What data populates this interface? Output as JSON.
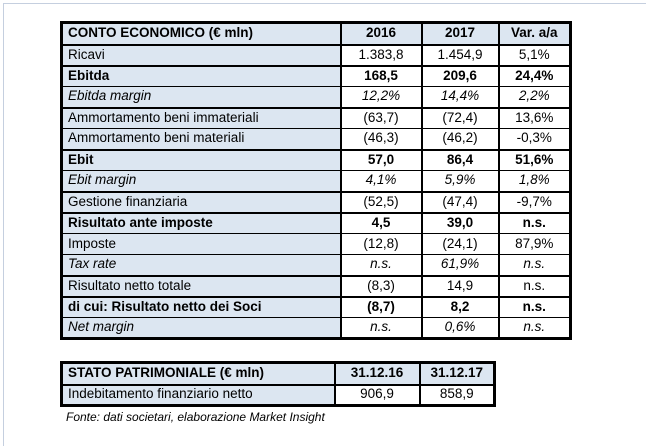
{
  "colors": {
    "header_fill": "#dce6f1",
    "label_fill": "#dce6f1",
    "table_border": "#000000",
    "frame_border": "#c5cfdf"
  },
  "income_statement": {
    "title": "CONTO ECONOMICO (€ mln)",
    "columns": [
      "2016",
      "2017",
      "Var. a/a"
    ],
    "rows": [
      {
        "label": "Ricavi",
        "values": [
          "1.383,8",
          "1.454,9",
          "5,1%"
        ],
        "style": "normal"
      },
      {
        "label": "Ebitda",
        "values": [
          "168,5",
          "209,6",
          "24,4%"
        ],
        "style": "bold"
      },
      {
        "label": "Ebitda margin",
        "values": [
          "12,2%",
          "14,4%",
          "2,2%"
        ],
        "style": "italic"
      },
      {
        "label": "Ammortamento beni immateriali",
        "values": [
          "(63,7)",
          "(72,4)",
          "13,6%"
        ],
        "style": "normal"
      },
      {
        "label": "Ammortamento beni materiali",
        "values": [
          "(46,3)",
          "(46,2)",
          "-0,3%"
        ],
        "style": "normal"
      },
      {
        "label": "Ebit",
        "values": [
          "57,0",
          "86,4",
          "51,6%"
        ],
        "style": "bold"
      },
      {
        "label": "Ebit margin",
        "values": [
          "4,1%",
          "5,9%",
          "1,8%"
        ],
        "style": "italic"
      },
      {
        "label": "Gestione finanziaria",
        "values": [
          "(52,5)",
          "(47,4)",
          "-9,7%"
        ],
        "style": "normal"
      },
      {
        "label": "Risultato ante imposte",
        "values": [
          "4,5",
          "39,0",
          "n.s."
        ],
        "style": "bold"
      },
      {
        "label": "Imposte",
        "values": [
          "(12,8)",
          "(24,1)",
          "87,9%"
        ],
        "style": "normal"
      },
      {
        "label": "Tax rate",
        "values": [
          "n.s.",
          "61,9%",
          "n.s."
        ],
        "style": "italic"
      },
      {
        "label": "Risultato netto totale",
        "values": [
          "(8,3)",
          "14,9",
          "n.s."
        ],
        "style": "normal"
      },
      {
        "label": "di cui: Risultato netto dei Soci",
        "values": [
          "(8,7)",
          "8,2",
          "n.s."
        ],
        "style": "bold"
      },
      {
        "label": "Net margin",
        "values": [
          "n.s.",
          "0,6%",
          "n.s."
        ],
        "style": "italic"
      }
    ]
  },
  "balance_sheet": {
    "title": "STATO PATRIMONIALE (€ mln)",
    "columns": [
      "31.12.16",
      "31.12.17"
    ],
    "rows": [
      {
        "label": "Indebitamento finanziario netto",
        "values": [
          "906,9",
          "858,9"
        ],
        "style": "normal"
      }
    ]
  },
  "footer": {
    "source_note": "Fonte: dati societari, elaborazione Market Insight"
  }
}
